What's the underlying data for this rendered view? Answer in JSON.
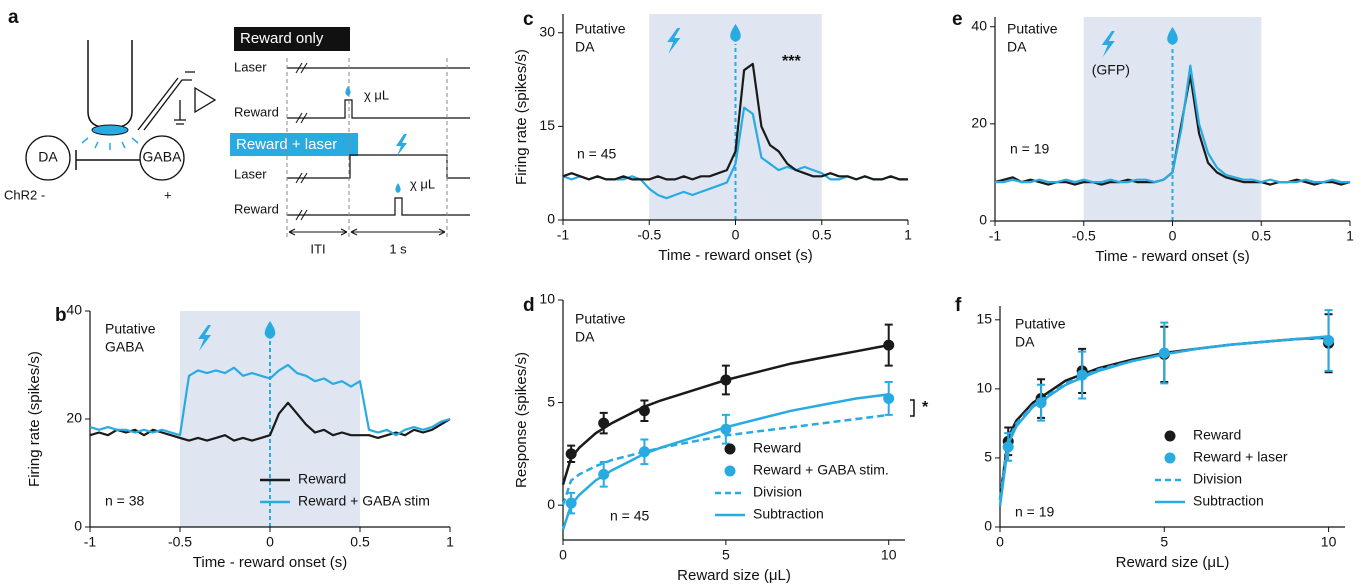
{
  "diagram": {
    "panel_label": "a",
    "neurons": [
      "DA",
      "GABA"
    ],
    "opsin_labels": [
      "ChR2 -",
      "+"
    ],
    "conditions": [
      {
        "title": "Reward only",
        "rows": [
          "Laser",
          "Reward"
        ],
        "volume": "χ μL"
      },
      {
        "title": "Reward + laser",
        "rows": [
          "Laser",
          "Reward"
        ],
        "volume": "χ μL"
      }
    ],
    "intervals": [
      "ITI",
      "1 s"
    ]
  },
  "chart_data": [
    {
      "type": "line",
      "panel_label": "b",
      "note_lines": [
        "Putative",
        "GABA"
      ],
      "n_label": "n = 38",
      "xlabel": "Time - reward onset (s)",
      "ylabel": "Firing rate (spikes/s)",
      "xlim": [
        -1,
        1
      ],
      "ylim": [
        0,
        40
      ],
      "xticks": [
        -1,
        -0.5,
        0,
        0.5,
        1
      ],
      "yticks": [
        0,
        20,
        40
      ],
      "shade_x": [
        -0.5,
        0.5
      ],
      "vline": 0,
      "legend": "lower right",
      "x": [
        -1,
        -0.95,
        -0.9,
        -0.85,
        -0.8,
        -0.75,
        -0.7,
        -0.65,
        -0.6,
        -0.55,
        -0.5,
        -0.45,
        -0.4,
        -0.35,
        -0.3,
        -0.25,
        -0.2,
        -0.15,
        -0.1,
        -0.05,
        0,
        0.05,
        0.1,
        0.15,
        0.2,
        0.25,
        0.3,
        0.35,
        0.4,
        0.45,
        0.5,
        0.55,
        0.6,
        0.65,
        0.7,
        0.75,
        0.8,
        0.85,
        0.9,
        0.95,
        1
      ],
      "series": [
        {
          "name": "Reward",
          "color": "#1a1a1a",
          "values": [
            17,
            17.5,
            17,
            18,
            17.5,
            18,
            17,
            18,
            17.5,
            17,
            16.5,
            16,
            16.5,
            16,
            16.5,
            17,
            16,
            16.5,
            16,
            16.5,
            17,
            21,
            23,
            21,
            19,
            17.5,
            18,
            17,
            17.5,
            17,
            17,
            17,
            16.5,
            17,
            17.5,
            17,
            18,
            17.5,
            18,
            19,
            20
          ]
        },
        {
          "name": "Reward + GABA stim",
          "color": "#29abe2",
          "values": [
            18.5,
            18,
            18.5,
            18,
            18,
            17.5,
            18,
            17.5,
            18,
            17.5,
            17,
            28,
            29,
            28.5,
            29,
            28.5,
            29.5,
            28,
            28.5,
            28,
            27.5,
            29,
            30,
            28.5,
            28,
            27,
            27.5,
            26.5,
            27,
            26,
            27,
            18,
            17.5,
            18,
            17,
            18,
            18.5,
            18,
            18.5,
            19.5,
            20
          ]
        }
      ]
    },
    {
      "type": "line",
      "panel_label": "c",
      "note_lines": [
        "Putative",
        "DA"
      ],
      "n_label": "n = 45",
      "stars": "***",
      "xlabel": "Time - reward onset (s)",
      "ylabel": "Firing rate (spikes/s)",
      "xlim": [
        -1,
        1
      ],
      "ylim": [
        0,
        33
      ],
      "xticks": [
        -1,
        -0.5,
        0,
        0.5,
        1
      ],
      "yticks": [
        0,
        15,
        30
      ],
      "shade_x": [
        -0.5,
        0.5
      ],
      "vline": 0,
      "x": [
        -1,
        -0.95,
        -0.9,
        -0.85,
        -0.8,
        -0.75,
        -0.7,
        -0.65,
        -0.6,
        -0.55,
        -0.5,
        -0.45,
        -0.4,
        -0.35,
        -0.3,
        -0.25,
        -0.2,
        -0.15,
        -0.1,
        -0.05,
        0,
        0.05,
        0.1,
        0.15,
        0.2,
        0.25,
        0.3,
        0.35,
        0.4,
        0.45,
        0.5,
        0.55,
        0.6,
        0.65,
        0.7,
        0.75,
        0.8,
        0.85,
        0.9,
        0.95,
        1
      ],
      "series": [
        {
          "name": "Reward + laser",
          "color": "#29abe2",
          "values": [
            7,
            6.5,
            7,
            6.5,
            7,
            6.5,
            6.5,
            6.5,
            7,
            6.5,
            5,
            4,
            3.5,
            4,
            4.5,
            4,
            4.5,
            5,
            5.5,
            6,
            9,
            18,
            17,
            10,
            9,
            8,
            8.5,
            8,
            8.5,
            8,
            7.5,
            6.5,
            6.5,
            7,
            6.5,
            7,
            6.5,
            6.5,
            7,
            6.5,
            6.5
          ]
        },
        {
          "name": "Reward",
          "color": "#1a1a1a",
          "values": [
            7,
            7.5,
            7,
            6.5,
            7,
            6.5,
            6.5,
            7,
            6.5,
            6.5,
            6.5,
            7,
            6.5,
            6.5,
            7,
            6.5,
            7,
            7,
            7.5,
            8,
            11,
            24,
            25,
            15,
            12,
            11,
            9,
            8,
            7.5,
            7,
            7,
            7.5,
            7,
            7,
            6.5,
            7,
            6.5,
            6.5,
            7,
            6.5,
            6.5
          ]
        }
      ]
    },
    {
      "type": "scatter",
      "panel_label": "d",
      "note_lines": [
        "Putative",
        "DA"
      ],
      "n_label": "n = 45",
      "stars": "*",
      "xlabel": "Reward size (μL)",
      "ylabel": "Response (spikes/s)",
      "xlim": [
        0,
        10.5
      ],
      "ylim": [
        -1.7,
        10
      ],
      "xticks": [
        0,
        5,
        10
      ],
      "yticks": [
        0,
        5,
        10
      ],
      "legend": "lower right",
      "series": [
        {
          "name": "Reward",
          "color": "#1a1a1a",
          "kind": "points",
          "x": [
            0.25,
            1.25,
            2.5,
            5,
            10
          ],
          "values": [
            2.5,
            4.0,
            4.6,
            6.1,
            7.8
          ],
          "errors": [
            0.4,
            0.5,
            0.5,
            0.7,
            1.0
          ],
          "fit": {
            "x": [
              0,
              0.25,
              0.5,
              1,
              1.5,
              2,
              2.5,
              3,
              4,
              5,
              6,
              7,
              8,
              9,
              10
            ],
            "values": [
              1.0,
              2.3,
              2.8,
              3.5,
              4.0,
              4.4,
              4.8,
              5.1,
              5.6,
              6.1,
              6.5,
              6.9,
              7.2,
              7.5,
              7.8
            ]
          }
        },
        {
          "name": "Reward + GABA stim.",
          "color": "#29abe2",
          "kind": "points",
          "x": [
            0.25,
            1.25,
            2.5,
            5,
            10
          ],
          "values": [
            0.1,
            1.5,
            2.6,
            3.7,
            5.2
          ],
          "errors": [
            0.5,
            0.6,
            0.6,
            0.7,
            0.8
          ]
        },
        {
          "name": "Division",
          "color": "#29abe2",
          "kind": "line",
          "dash": true,
          "x": [
            0,
            0.25,
            0.5,
            1,
            1.5,
            2,
            2.5,
            3,
            4,
            5,
            6,
            7,
            8,
            9,
            10
          ],
          "values": [
            0.0,
            1.2,
            1.5,
            1.9,
            2.2,
            2.4,
            2.6,
            2.8,
            3.1,
            3.4,
            3.6,
            3.8,
            4.0,
            4.2,
            4.4
          ]
        },
        {
          "name": "Subtraction",
          "color": "#29abe2",
          "kind": "line",
          "dash": false,
          "x": [
            0,
            0.25,
            0.5,
            1,
            1.5,
            2,
            2.5,
            3,
            4,
            5,
            6,
            7,
            8,
            9,
            10
          ],
          "values": [
            -1.2,
            0.0,
            0.5,
            1.2,
            1.7,
            2.1,
            2.5,
            2.8,
            3.3,
            3.8,
            4.2,
            4.6,
            4.9,
            5.2,
            5.4
          ]
        }
      ]
    },
    {
      "type": "line",
      "panel_label": "e",
      "note_lines": [
        "Putative",
        "DA"
      ],
      "note_extra": "(GFP)",
      "n_label": "n = 19",
      "xlabel": "Time - reward onset (s)",
      "xlim": [
        -1,
        1
      ],
      "ylim": [
        0,
        42
      ],
      "xticks": [
        -1,
        -0.5,
        0,
        0.5,
        1
      ],
      "yticks": [
        0,
        20,
        40
      ],
      "shade_x": [
        -0.5,
        0.5
      ],
      "vline": 0,
      "x": [
        -1,
        -0.95,
        -0.9,
        -0.85,
        -0.8,
        -0.75,
        -0.7,
        -0.65,
        -0.6,
        -0.55,
        -0.5,
        -0.45,
        -0.4,
        -0.35,
        -0.3,
        -0.25,
        -0.2,
        -0.15,
        -0.1,
        -0.05,
        0,
        0.05,
        0.1,
        0.15,
        0.2,
        0.25,
        0.3,
        0.35,
        0.4,
        0.45,
        0.5,
        0.55,
        0.6,
        0.65,
        0.7,
        0.75,
        0.8,
        0.85,
        0.9,
        0.95,
        1
      ],
      "series": [
        {
          "name": "Reward",
          "color": "#1a1a1a",
          "values": [
            8,
            8.5,
            9,
            8,
            8.5,
            8,
            7.5,
            8,
            8,
            7.5,
            8,
            8,
            7.5,
            8,
            8,
            8.5,
            8,
            8,
            8,
            8.5,
            10,
            20,
            30,
            18,
            12,
            10,
            9,
            8.5,
            8,
            8,
            8,
            7.5,
            8,
            8,
            8.5,
            8,
            7.5,
            8,
            8,
            7.5,
            8
          ]
        },
        {
          "name": "Reward + laser",
          "color": "#29abe2",
          "values": [
            8,
            8,
            8.5,
            8,
            8,
            8.5,
            8,
            8,
            8.5,
            8,
            8.5,
            8,
            8,
            8.5,
            8,
            8,
            8.5,
            8.5,
            8,
            8.5,
            10,
            19,
            32,
            20,
            14,
            11,
            9.5,
            9,
            8.5,
            8.5,
            8,
            8.5,
            8,
            8,
            8,
            8.5,
            8,
            8,
            8.5,
            8,
            8
          ]
        }
      ]
    },
    {
      "type": "scatter",
      "panel_label": "f",
      "note_lines": [
        "Putative",
        "DA"
      ],
      "n_label": "n = 19",
      "xlabel": "Reward size (μL)",
      "xlim": [
        0,
        10.5
      ],
      "ylim": [
        0,
        16
      ],
      "xticks": [
        0,
        5,
        10
      ],
      "yticks": [
        0,
        5,
        10,
        15
      ],
      "legend": "lower right",
      "series": [
        {
          "name": "Reward",
          "color": "#1a1a1a",
          "kind": "points",
          "x": [
            0.25,
            1.25,
            2.5,
            5,
            10
          ],
          "values": [
            6.2,
            9.3,
            11.3,
            12.5,
            13.3
          ],
          "errors": [
            1.0,
            1.4,
            1.6,
            2.0,
            2.1
          ],
          "fit": {
            "x": [
              0,
              0.25,
              0.5,
              1,
              2,
              3,
              4,
              5,
              6,
              7,
              8,
              9,
              10
            ],
            "values": [
              2,
              6.5,
              7.7,
              9.0,
              10.6,
              11.5,
              12.1,
              12.6,
              12.9,
              13.2,
              13.4,
              13.6,
              13.7
            ]
          }
        },
        {
          "name": "Reward + laser",
          "color": "#29abe2",
          "kind": "points",
          "x": [
            0.25,
            1.25,
            2.5,
            5,
            10
          ],
          "values": [
            5.8,
            9.0,
            11.0,
            12.6,
            13.5
          ],
          "errors": [
            1.0,
            1.3,
            1.7,
            2.2,
            2.2
          ]
        },
        {
          "name": "Division",
          "color": "#29abe2",
          "kind": "line",
          "dash": true,
          "x": [
            0,
            0.25,
            0.5,
            1,
            2,
            3,
            4,
            5,
            6,
            7,
            8,
            9,
            10
          ],
          "values": [
            2,
            6.3,
            7.5,
            8.8,
            10.4,
            11.4,
            12.0,
            12.5,
            12.9,
            13.2,
            13.4,
            13.6,
            13.7
          ]
        },
        {
          "name": "Subtraction",
          "color": "#29abe2",
          "kind": "line",
          "dash": false,
          "x": [
            0,
            0.25,
            0.5,
            1,
            2,
            3,
            4,
            5,
            6,
            7,
            8,
            9,
            10
          ],
          "values": [
            1.5,
            6.0,
            7.3,
            8.7,
            10.3,
            11.3,
            12.0,
            12.5,
            12.9,
            13.2,
            13.4,
            13.6,
            13.8
          ]
        }
      ]
    }
  ]
}
